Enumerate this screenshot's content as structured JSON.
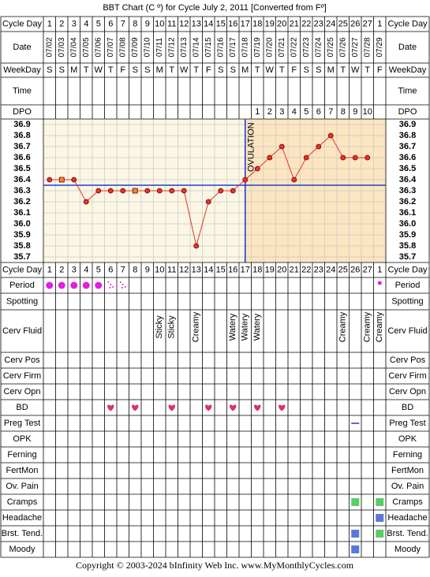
{
  "title": "BBT Chart (C º) for Cycle July 2, 2011  [Converted from Fº]",
  "footer": "Copyright © 2003-2024 bInfinity Web Inc.    www.MyMonthlyCycles.com",
  "date_label": "Date",
  "top_rows": [
    {
      "label": "Cycle Day",
      "values": [
        1,
        2,
        3,
        4,
        5,
        6,
        7,
        8,
        9,
        10,
        11,
        12,
        13,
        14,
        15,
        16,
        17,
        18,
        19,
        20,
        21,
        22,
        23,
        24,
        25,
        26,
        27,
        1
      ]
    },
    {
      "label": "WeekDay",
      "values": [
        "S",
        "S",
        "M",
        "T",
        "W",
        "T",
        "F",
        "S",
        "S",
        "M",
        "T",
        "W",
        "T",
        "F",
        "S",
        "S",
        "M",
        "T",
        "W",
        "T",
        "F",
        "S",
        "S",
        "M",
        "T",
        "W",
        "T",
        "F"
      ]
    },
    {
      "label": "Time",
      "values": [
        null,
        null,
        null,
        null,
        null,
        null,
        null,
        null,
        null,
        null,
        null,
        null,
        null,
        null,
        null,
        null,
        null,
        null,
        null,
        null,
        null,
        null,
        null,
        null,
        null,
        null,
        null,
        null
      ]
    },
    {
      "label": "DPO",
      "values": [
        null,
        null,
        null,
        null,
        null,
        null,
        null,
        null,
        null,
        null,
        null,
        null,
        null,
        null,
        null,
        null,
        null,
        1,
        2,
        3,
        4,
        5,
        6,
        7,
        8,
        9,
        10,
        null
      ]
    }
  ],
  "chart_data": {
    "type": "line",
    "categories": [
      "07/02",
      "07/03",
      "07/04",
      "07/05",
      "07/06",
      "07/07",
      "07/08",
      "07/09",
      "07/10",
      "07/11",
      "07/12",
      "07/13",
      "07/14",
      "07/15",
      "07/16",
      "07/17",
      "07/18",
      "07/19",
      "07/20",
      "07/21",
      "07/22",
      "07/23",
      "07/24",
      "07/25",
      "07/26",
      "07/27",
      "07/28",
      "07/29"
    ],
    "values": [
      36.4,
      36.4,
      36.4,
      36.2,
      36.3,
      36.3,
      36.3,
      36.3,
      36.3,
      36.3,
      36.3,
      36.3,
      35.8,
      36.2,
      36.3,
      36.3,
      36.4,
      36.5,
      36.6,
      36.7,
      36.4,
      36.6,
      36.7,
      36.8,
      36.6,
      36.6,
      36.6,
      null
    ],
    "square_markers": [
      1,
      7
    ],
    "color": "#e8332a",
    "square_color": "#f08a2a",
    "ylim": [
      35.65,
      36.95
    ],
    "yticks": [
      36.9,
      36.8,
      36.7,
      36.6,
      36.5,
      36.4,
      36.3,
      36.2,
      36.1,
      {
        "value": 36,
        "label": "36.0"
      },
      35.9,
      35.8,
      35.7
    ],
    "grid": true,
    "coverline": 36.35,
    "coverline_color": "#1a3fd6",
    "ovulation_day": 17,
    "annotation": "OVULATION"
  },
  "bottom_rows": [
    {
      "label": "Period",
      "full": [
        0,
        1,
        2,
        3,
        4
      ],
      "light": [
        5,
        6
      ],
      "small": [
        27
      ]
    },
    {
      "label": "Spotting"
    },
    {
      "label": "Cerv Fluid",
      "values": [
        null,
        null,
        null,
        null,
        null,
        null,
        null,
        null,
        null,
        "Sticky",
        "Sticky",
        null,
        "Creamy",
        null,
        null,
        "Watery",
        "Watery",
        "Watery",
        null,
        null,
        null,
        null,
        null,
        null,
        "Creamy",
        null,
        "Creamy",
        "Creamy"
      ]
    },
    {
      "label": "Cerv Pos"
    },
    {
      "label": "Cerv Firm"
    },
    {
      "label": "Cerv Opn"
    },
    {
      "label": "BD",
      "hearts": [
        5,
        7,
        10,
        13,
        15,
        17,
        19
      ]
    },
    {
      "label": "Preg Test",
      "dash": [
        25
      ]
    },
    {
      "label": "OPK"
    },
    {
      "label": "Ferning"
    },
    {
      "label": "FertMon"
    },
    {
      "label": "Ov. Pain"
    },
    {
      "label": "Cramps",
      "green": [
        25,
        27
      ]
    },
    {
      "label": "Headache",
      "blue": [
        27
      ]
    },
    {
      "label": "Brst. Tend.",
      "blue": [
        25
      ],
      "green": [
        27
      ]
    },
    {
      "label": "Moody",
      "blue": [
        25
      ]
    }
  ],
  "colors": {
    "period": "#e020e0",
    "heart": "#d6336c",
    "green": "#5ccc6a",
    "blue": "#5a78d8",
    "dash": "#3344bb"
  }
}
